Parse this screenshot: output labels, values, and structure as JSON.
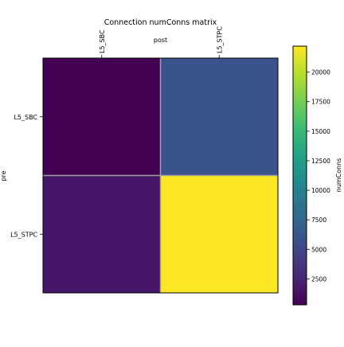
{
  "chart_data": {
    "type": "heatmap",
    "title": "Connection numConns matrix",
    "xlabel": "post",
    "ylabel": "pre",
    "x_categories": [
      "L5_SBC",
      "L5_STPC"
    ],
    "y_categories": [
      "L5_SBC",
      "L5_STPC"
    ],
    "values": [
      [
        300,
        6000
      ],
      [
        1700,
        22200
      ]
    ],
    "colormap": "viridis",
    "colorbar": {
      "label": "numConns",
      "range": [
        300,
        22200
      ],
      "ticks": [
        2500,
        5000,
        7500,
        10000,
        12500,
        15000,
        17500,
        20000,
        22500
      ],
      "tick_labels": [
        "2500",
        "5000",
        "7500",
        "10000",
        "12500",
        "15000",
        "17500",
        "20000",
        ""
      ]
    },
    "cell_border_color": "#a0a0a0",
    "grid": false
  }
}
